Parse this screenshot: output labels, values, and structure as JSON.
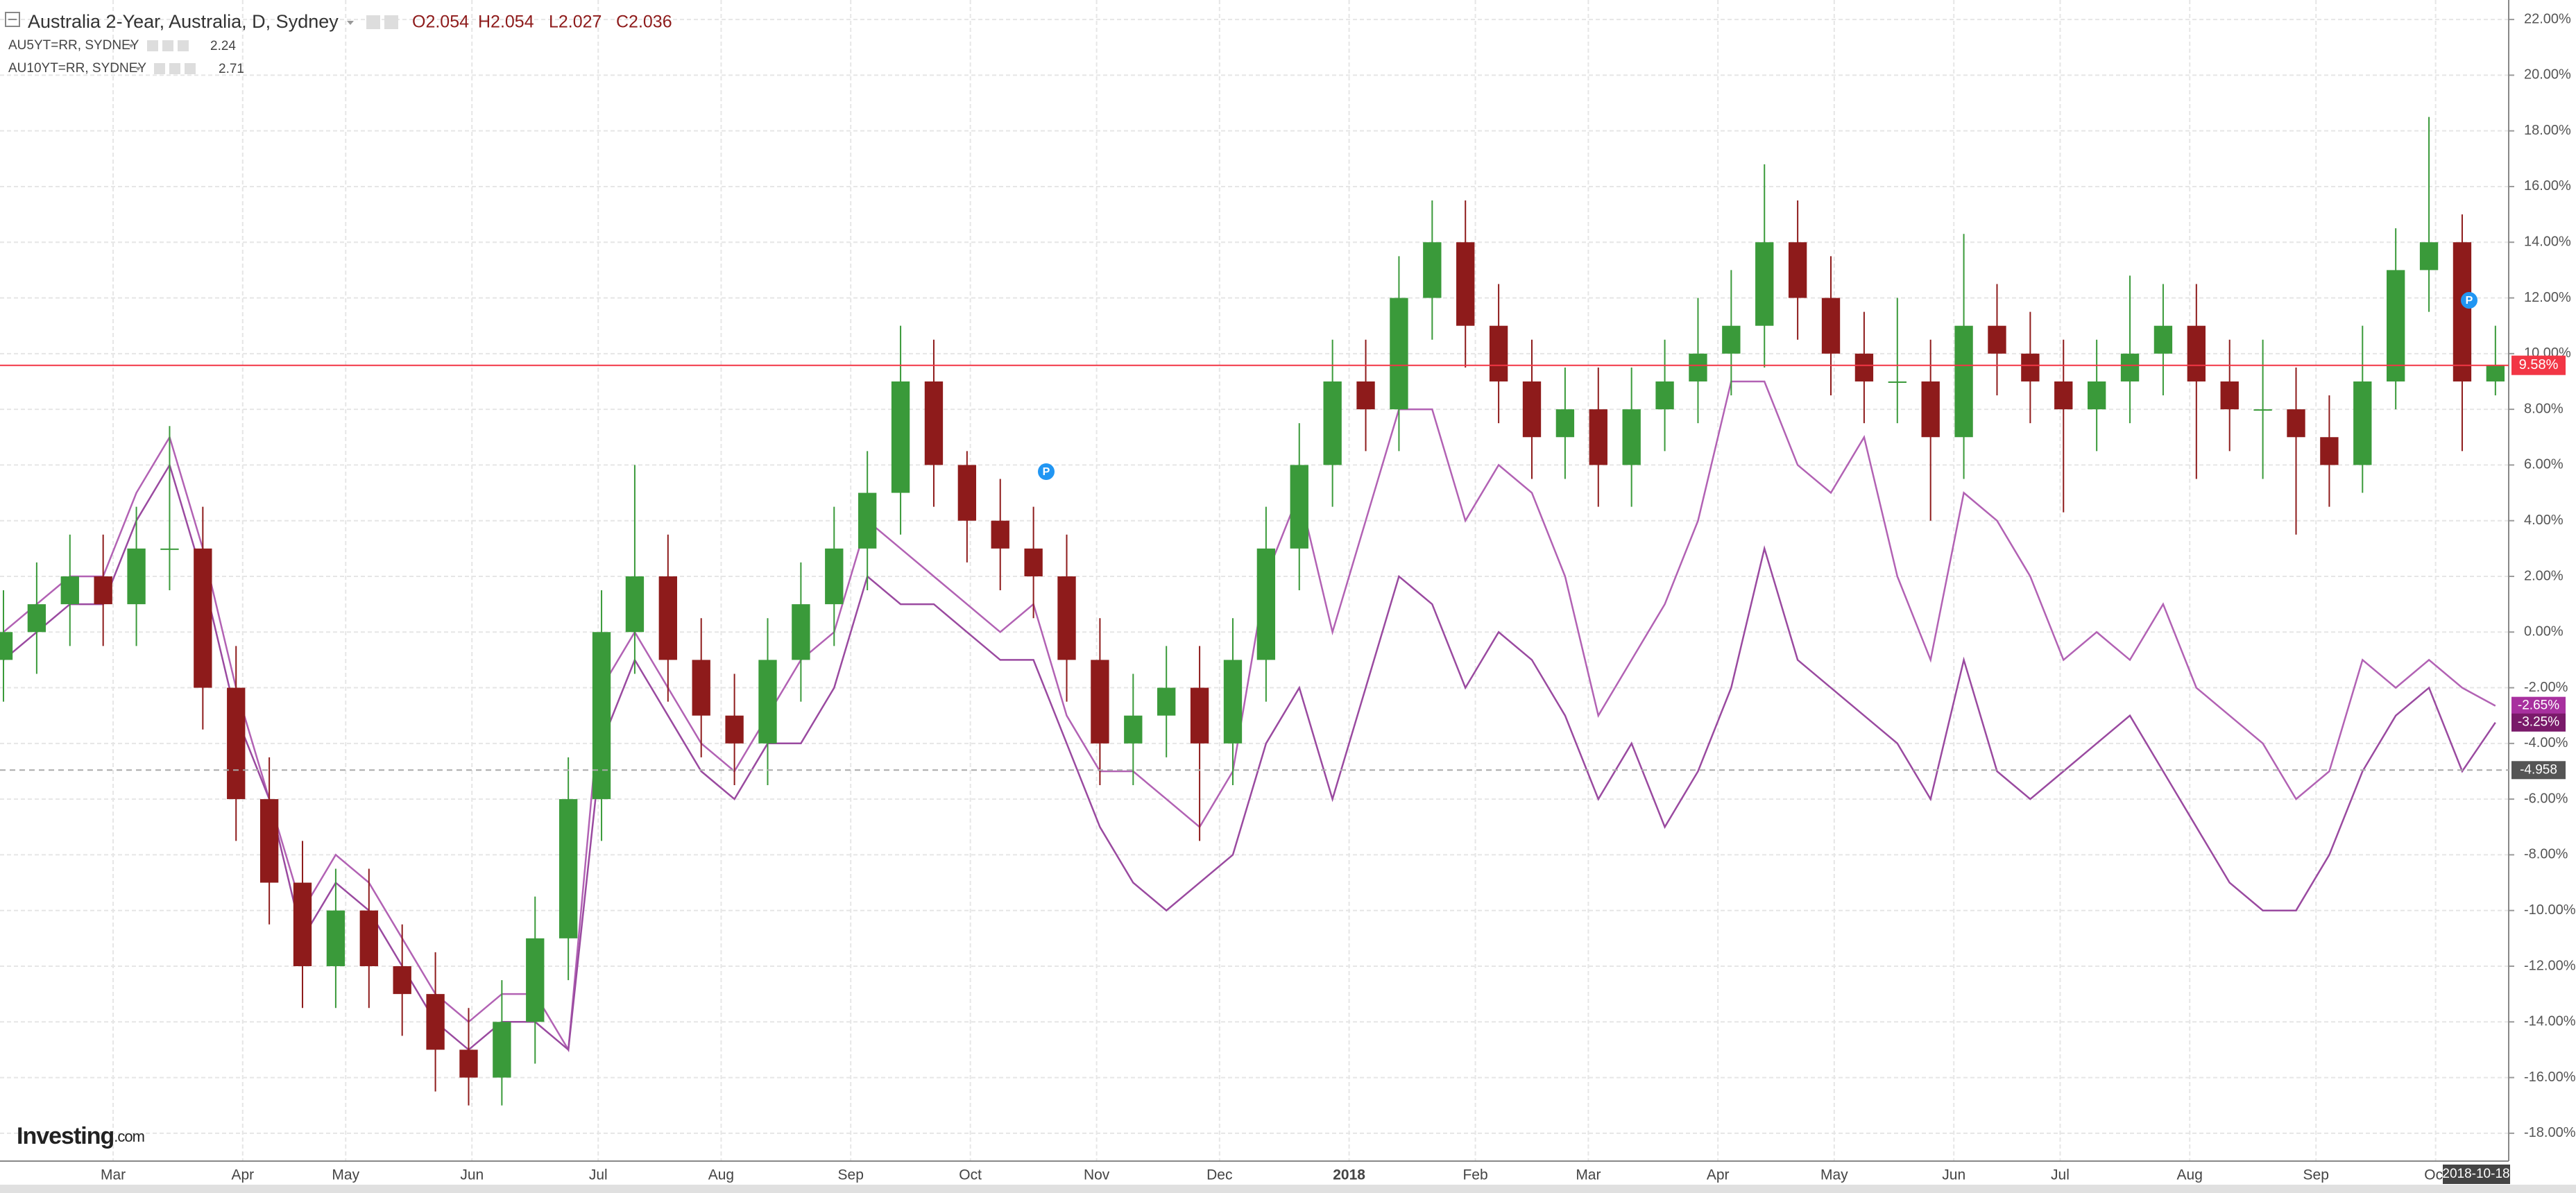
{
  "chart_data": {
    "type": "candlestick",
    "title": "Australia 2-Year, Australia, D, Sydney",
    "ohlc": [
      "O2.054",
      "H2.054",
      "L2.027",
      "C2.036"
    ],
    "x": [
      0,
      1,
      2,
      3,
      4,
      5,
      6,
      7,
      8,
      9,
      10,
      11,
      12,
      13,
      14,
      15,
      16,
      17,
      18,
      19,
      20,
      21,
      22,
      23,
      24,
      25,
      26,
      27,
      28,
      29,
      30,
      31,
      32,
      33,
      34,
      35,
      36,
      37,
      38,
      39,
      40,
      41,
      42,
      43,
      44,
      45,
      46,
      47,
      48,
      49,
      50,
      51,
      52,
      53,
      54,
      55,
      56,
      57,
      58,
      59,
      60,
      61,
      62,
      63,
      64,
      65,
      66,
      67,
      68,
      69,
      70,
      71,
      72,
      73,
      74,
      75
    ],
    "xlim": [
      0,
      75.4
    ],
    "xticks": [
      {
        "value": 3.3,
        "label": "Mar"
      },
      {
        "value": 7.2,
        "label": "Apr"
      },
      {
        "value": 10.3,
        "label": "May"
      },
      {
        "value": 14.1,
        "label": "Jun"
      },
      {
        "value": 17.9,
        "label": "Jul"
      },
      {
        "value": 21.6,
        "label": "Aug"
      },
      {
        "value": 25.5,
        "label": "Sep"
      },
      {
        "value": 29.1,
        "label": "Oct"
      },
      {
        "value": 32.9,
        "label": "Nov"
      },
      {
        "value": 36.6,
        "label": "Dec"
      },
      {
        "value": 40.5,
        "label": "2018"
      },
      {
        "value": 44.3,
        "label": "Feb"
      },
      {
        "value": 47.7,
        "label": "Mar"
      },
      {
        "value": 51.6,
        "label": "Apr"
      },
      {
        "value": 55.1,
        "label": "May"
      },
      {
        "value": 58.7,
        "label": "Jun"
      },
      {
        "value": 61.9,
        "label": "Jul"
      },
      {
        "value": 65.8,
        "label": "Aug"
      },
      {
        "value": 69.6,
        "label": "Sep"
      },
      {
        "value": 73.2,
        "label": "Oct"
      }
    ],
    "ylim": [
      -19,
      22.7
    ],
    "yticks": [
      {
        "value": 22,
        "label": "22.00%"
      },
      {
        "value": 20,
        "label": "20.00%"
      },
      {
        "value": 18,
        "label": "18.00%"
      },
      {
        "value": 16,
        "label": "16.00%"
      },
      {
        "value": 14,
        "label": "14.00%"
      },
      {
        "value": 12,
        "label": "12.00%"
      },
      {
        "value": 10,
        "label": "10.00%"
      },
      {
        "value": 8,
        "label": "8.00%"
      },
      {
        "value": 6,
        "label": "6.00%"
      },
      {
        "value": 4,
        "label": "4.00%"
      },
      {
        "value": 2,
        "label": "2.00%"
      },
      {
        "value": 0,
        "label": "0.00%"
      },
      {
        "value": -2,
        "label": "-2.00%"
      },
      {
        "value": -4,
        "label": "-4.00%"
      },
      {
        "value": -6,
        "label": "-6.00%"
      },
      {
        "value": -8,
        "label": "-8.00%"
      },
      {
        "value": -10,
        "label": "-10.00%"
      },
      {
        "value": -12,
        "label": "-12.00%"
      },
      {
        "value": -14,
        "label": "-14.00%"
      },
      {
        "value": -16,
        "label": "-16.00%"
      },
      {
        "value": -18,
        "label": "-18.00%"
      }
    ],
    "grid": true,
    "candles": {
      "up_color": "#3a9a3a",
      "down_color": "#8e1b1b",
      "open": [
        -1,
        0,
        1,
        2,
        1,
        3,
        3,
        -2,
        -6,
        -9,
        -12,
        -10,
        -12,
        -13,
        -15,
        -16,
        -14,
        -11,
        -6,
        0,
        2,
        -1,
        -3,
        -4,
        -1,
        1,
        3,
        5,
        9,
        6,
        4,
        3,
        2,
        -1,
        -4,
        -3,
        -2,
        -4,
        -1,
        3,
        6,
        9,
        8,
        12,
        14,
        11,
        9,
        7,
        8,
        6,
        8,
        9,
        10,
        11,
        14,
        12,
        10,
        9,
        9,
        7,
        11,
        10,
        9,
        8,
        9,
        10,
        11,
        9,
        8,
        8,
        7,
        6,
        9,
        13,
        14,
        9
      ],
      "high": [
        1.5,
        2.5,
        3.5,
        3.5,
        4.5,
        7.4,
        4.5,
        -0.5,
        -4.5,
        -7.5,
        -8.5,
        -8.5,
        -10.5,
        -11.5,
        -13.5,
        -12.5,
        -9.5,
        -4.5,
        1.5,
        6,
        3.5,
        0.5,
        -1.5,
        0.5,
        2.5,
        4.5,
        6.5,
        11,
        10.5,
        6.5,
        5.5,
        4.5,
        3.5,
        0.5,
        -1.5,
        -0.5,
        -0.5,
        0.5,
        4.5,
        7.5,
        10.5,
        10.5,
        13.5,
        15.5,
        15.5,
        12.5,
        10.5,
        9.5,
        9.5,
        9.5,
        10.5,
        12,
        13,
        16.8,
        15.5,
        13.5,
        11.5,
        12,
        10.5,
        14.3,
        12.5,
        11.5,
        10.5,
        10.5,
        12.8,
        12.5,
        12.5,
        10.5,
        10.5,
        9.5,
        8.5,
        11,
        14.5,
        18.5,
        15,
        11
      ],
      "low": [
        -2.5,
        -1.5,
        -0.5,
        -0.5,
        -0.5,
        1.5,
        -3.5,
        -7.5,
        -10.5,
        -13.5,
        -13.5,
        -13.5,
        -14.5,
        -16.5,
        -17,
        -17,
        -15.5,
        -12.5,
        -7.5,
        -1.5,
        -2.5,
        -4.5,
        -5.5,
        -5.5,
        -2.5,
        -0.5,
        1.5,
        3.5,
        4.5,
        2.5,
        1.5,
        0.5,
        -2.5,
        -5.5,
        -5.5,
        -4.5,
        -7.5,
        -5.5,
        -2.5,
        1.5,
        4.5,
        6.5,
        6.5,
        10.5,
        9.5,
        7.5,
        5.5,
        5.5,
        4.5,
        4.5,
        6.5,
        7.5,
        8.5,
        9.5,
        10.5,
        8.5,
        7.5,
        7.5,
        4,
        5.5,
        8.5,
        7.5,
        4.3,
        6.5,
        7.5,
        8.5,
        5.5,
        6.5,
        5.5,
        3.5,
        4.5,
        5,
        8,
        11.5,
        6.5,
        8.5
      ],
      "close": [
        0,
        1,
        2,
        1,
        3,
        3,
        -2,
        -6,
        -9,
        -12,
        -10,
        -12,
        -13,
        -15,
        -16,
        -14,
        -11,
        -6,
        0,
        2,
        -1,
        -3,
        -4,
        -1,
        1,
        3,
        5,
        9,
        6,
        4,
        3,
        2,
        -1,
        -4,
        -3,
        -2,
        -4,
        -1,
        3,
        6,
        9,
        8,
        12,
        14,
        11,
        9,
        7,
        8,
        6,
        8,
        9,
        10,
        11,
        14,
        12,
        10,
        9,
        9,
        7,
        11,
        10,
        9,
        8,
        9,
        10,
        11,
        9,
        8,
        8,
        7,
        6,
        9,
        13,
        14,
        9,
        9.58
      ]
    },
    "series": [
      {
        "name": "AU5YT=RR, SYDNEY",
        "color": "#b262b4",
        "legend_value": "2.24",
        "last_label": "-2.65%",
        "label_color": "#a8309f",
        "values": [
          0,
          1,
          2,
          2,
          5,
          7,
          3,
          -2,
          -6,
          -10,
          -8,
          -9,
          -11,
          -13,
          -14,
          -13,
          -13,
          -15,
          -2,
          0,
          -2,
          -4,
          -5,
          -3,
          -1,
          0,
          4,
          3,
          2,
          1,
          0,
          1,
          -3,
          -5,
          -5,
          -6,
          -7,
          -5,
          2,
          5,
          0,
          4,
          8,
          8,
          4,
          6,
          5,
          2,
          -3,
          -1,
          1,
          4,
          9,
          9,
          6,
          5,
          7,
          2,
          -1,
          5,
          4,
          2,
          -1,
          0,
          -1,
          1,
          -2,
          -3,
          -4,
          -6,
          -5,
          -1,
          -2,
          -1,
          -2,
          -2.65
        ]
      },
      {
        "name": "AU10YT=RR, SYDNEY",
        "color": "#9a4aa0",
        "legend_value": "2.71",
        "last_label": "-3.25%",
        "label_color": "#7a1a6a",
        "values": [
          -1,
          0,
          1,
          1,
          4,
          6,
          2,
          -3,
          -6,
          -11,
          -9,
          -10,
          -12,
          -14,
          -15,
          -14,
          -14,
          -15,
          -4,
          -1,
          -3,
          -5,
          -6,
          -4,
          -4,
          -2,
          2,
          1,
          1,
          0,
          -1,
          -1,
          -4,
          -7,
          -9,
          -10,
          -9,
          -8,
          -4,
          -2,
          -6,
          -2,
          2,
          1,
          -2,
          0,
          -1,
          -3,
          -6,
          -4,
          -7,
          -5,
          -2,
          3,
          -1,
          -2,
          -3,
          -4,
          -6,
          -1,
          -5,
          -6,
          -5,
          -4,
          -3,
          -5,
          -7,
          -9,
          -10,
          -10,
          -8,
          -5,
          -3,
          -2,
          -5,
          -3.25
        ]
      }
    ],
    "price_line": {
      "value": 9.58,
      "label": "9.58%",
      "color": "#f23645"
    },
    "crosshair": {
      "value": -4.958,
      "label": "-4.958"
    },
    "cursor_date": "2018-10-18",
    "event_markers": [
      "P",
      "P"
    ],
    "logo": [
      "Investing",
      ".com"
    ]
  }
}
